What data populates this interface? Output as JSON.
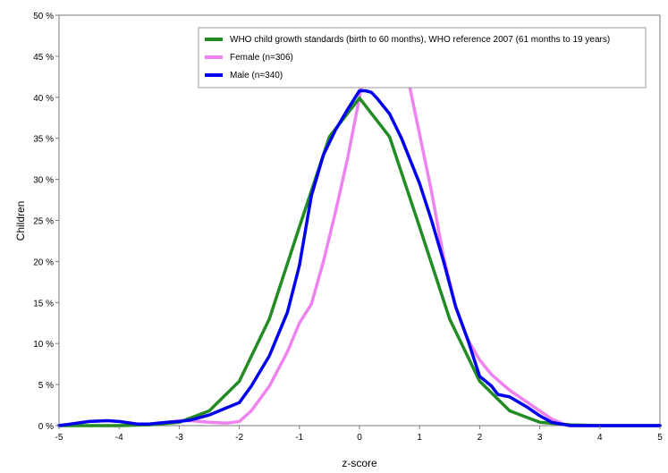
{
  "chart_data": {
    "type": "line",
    "xlabel": "z-score",
    "ylabel": "Children",
    "xlim": [
      -5,
      5
    ],
    "ylim": [
      0,
      50
    ],
    "x_ticks": [
      -5,
      -4,
      -3,
      -2,
      -1,
      0,
      1,
      2,
      3,
      4,
      5
    ],
    "y_ticks": [
      0,
      5,
      10,
      15,
      20,
      25,
      30,
      35,
      40,
      45,
      50
    ],
    "y_tick_labels": [
      "0 %",
      "5 %",
      "10 %",
      "15 %",
      "20 %",
      "25 %",
      "30 %",
      "35 %",
      "40 %",
      "45 %",
      "50 %"
    ],
    "grid": false,
    "legend_position": "top-right",
    "series": [
      {
        "name": "WHO child growth standards (birth to 60 months), WHO reference 2007 (61 months to 19 years)",
        "color": "#238b23",
        "x": [
          -5,
          -4,
          -3.5,
          -3,
          -2.5,
          -2,
          -1.5,
          -1,
          -0.5,
          0,
          0.5,
          1,
          1.5,
          2,
          2.5,
          3,
          3.5,
          4,
          5
        ],
        "y": [
          0.0,
          0.0,
          0.1,
          0.4,
          1.8,
          5.4,
          13.0,
          24.2,
          35.2,
          39.9,
          35.2,
          24.2,
          13.0,
          5.4,
          1.8,
          0.4,
          0.1,
          0.0,
          0.0
        ]
      },
      {
        "name": "Female (n=306)",
        "color": "#ee82ee",
        "x": [
          -5,
          -4.8,
          -4.5,
          -4.2,
          -4,
          -3.7,
          -3.5,
          -3.2,
          -3,
          -2.8,
          -2.5,
          -2.2,
          -2,
          -1.8,
          -1.5,
          -1.2,
          -1,
          -0.8,
          -0.6,
          -0.4,
          -0.2,
          0,
          0.1,
          0.2,
          0.3,
          0.4,
          0.5,
          0.6,
          0.8,
          1,
          1.2,
          1.4,
          1.6,
          1.8,
          2,
          2.2,
          2.5,
          2.8,
          3,
          3.2,
          3.4,
          3.6,
          4,
          5
        ],
        "y": [
          0.0,
          0.2,
          0.5,
          0.6,
          0.5,
          0.2,
          0.2,
          0.4,
          0.6,
          0.6,
          0.4,
          0.3,
          0.5,
          1.8,
          4.8,
          9.0,
          12.5,
          14.8,
          20.0,
          26.0,
          32.5,
          40.0,
          44.0,
          47.0,
          47.5,
          47.0,
          46.0,
          45.0,
          42.5,
          35.5,
          28.5,
          20.5,
          14.5,
          10.5,
          8.0,
          6.2,
          4.3,
          2.8,
          1.8,
          0.8,
          0.2,
          0.0,
          0.0,
          0.0
        ]
      },
      {
        "name": "Male (n=340)",
        "color": "#0000ee",
        "x": [
          -5,
          -4.8,
          -4.5,
          -4.2,
          -4,
          -3.7,
          -3.5,
          -3.2,
          -3,
          -2.8,
          -2.5,
          -2.2,
          -2,
          -1.8,
          -1.5,
          -1.2,
          -1,
          -0.8,
          -0.6,
          -0.4,
          -0.2,
          0,
          0.1,
          0.2,
          0.3,
          0.5,
          0.7,
          1,
          1.2,
          1.4,
          1.6,
          1.8,
          2,
          2.2,
          2.3,
          2.5,
          2.8,
          3,
          3.2,
          3.5,
          4,
          5
        ],
        "y": [
          0.0,
          0.2,
          0.5,
          0.6,
          0.5,
          0.2,
          0.2,
          0.4,
          0.5,
          0.7,
          1.3,
          2.2,
          2.8,
          4.8,
          8.5,
          13.8,
          19.5,
          28.0,
          33.0,
          36.0,
          38.5,
          40.8,
          40.8,
          40.6,
          39.8,
          38.0,
          35.0,
          29.5,
          25.0,
          20.0,
          14.5,
          10.5,
          6.0,
          4.8,
          3.8,
          3.5,
          2.2,
          1.2,
          0.4,
          0.0,
          0.0,
          0.0
        ]
      }
    ]
  }
}
